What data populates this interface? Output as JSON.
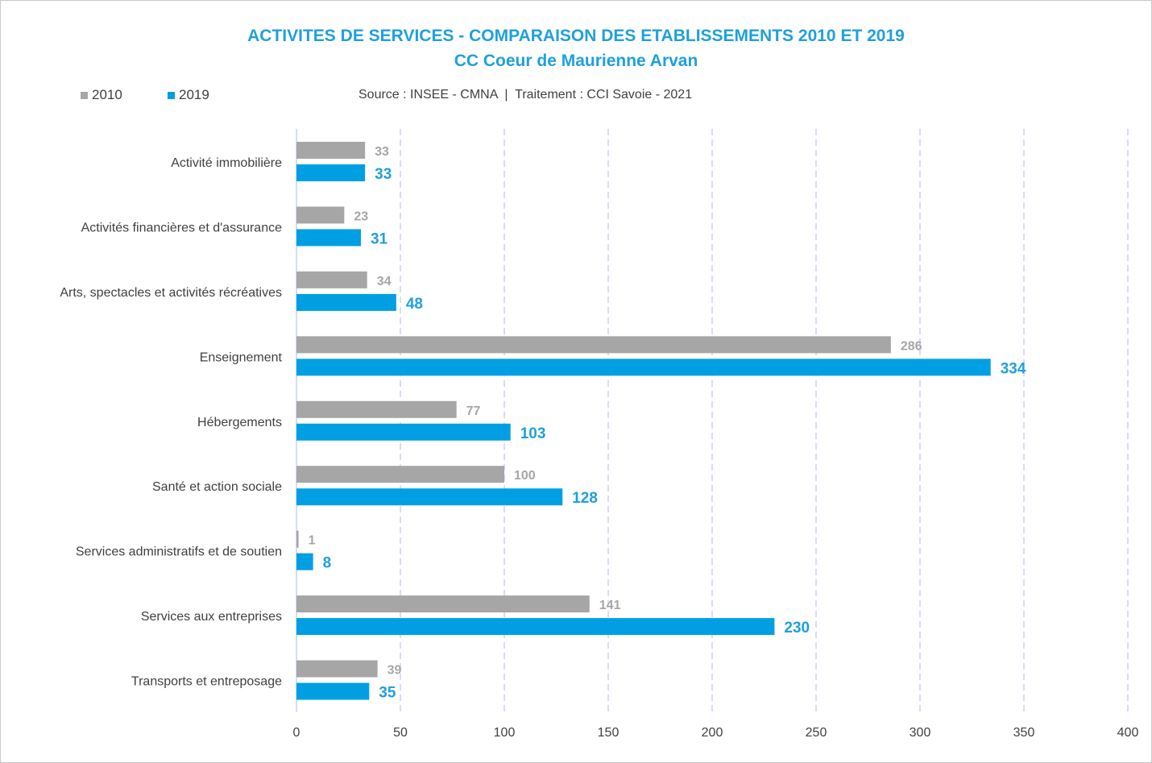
{
  "colors": {
    "series_2010": "#a6a6a6",
    "series_2019": "#009fe3",
    "title": "#1fa0dc",
    "grid": "#c9c6f0"
  },
  "title_line1": "ACTIVITES DE SERVICES - COMPARAISON DES ETABLISSEMENTS 2010 ET 2019",
  "title_line2": "CC Coeur de Maurienne Arvan",
  "source": "Source : INSEE - CMNA  |  Traitement : CCI Savoie - 2021",
  "legend": [
    {
      "label": "2010"
    },
    {
      "label": "2019"
    }
  ],
  "chart_data": {
    "type": "bar",
    "orientation": "horizontal",
    "title": "ACTIVITES DE SERVICES - COMPARAISON DES ETABLISSEMENTS 2010 ET 2019",
    "subtitle": "CC Coeur de Maurienne Arvan",
    "categories": [
      "Activité immobilière",
      "Activités financières et d'assurance",
      "Arts, spectacles et activités récréatives",
      "Enseignement",
      "Hébergements",
      "Santé et action sociale",
      "Services administratifs et de soutien",
      "Services aux entreprises",
      "Transports et entreposage"
    ],
    "series": [
      {
        "name": "2010",
        "values": [
          33,
          23,
          34,
          286,
          77,
          100,
          1,
          141,
          39
        ]
      },
      {
        "name": "2019",
        "values": [
          33,
          31,
          48,
          334,
          103,
          128,
          8,
          230,
          35
        ]
      }
    ],
    "xlim": [
      0,
      400
    ],
    "xticks": [
      0,
      50,
      100,
      150,
      200,
      250,
      300,
      350,
      400
    ],
    "grid": true,
    "legend_position": "top-left"
  }
}
